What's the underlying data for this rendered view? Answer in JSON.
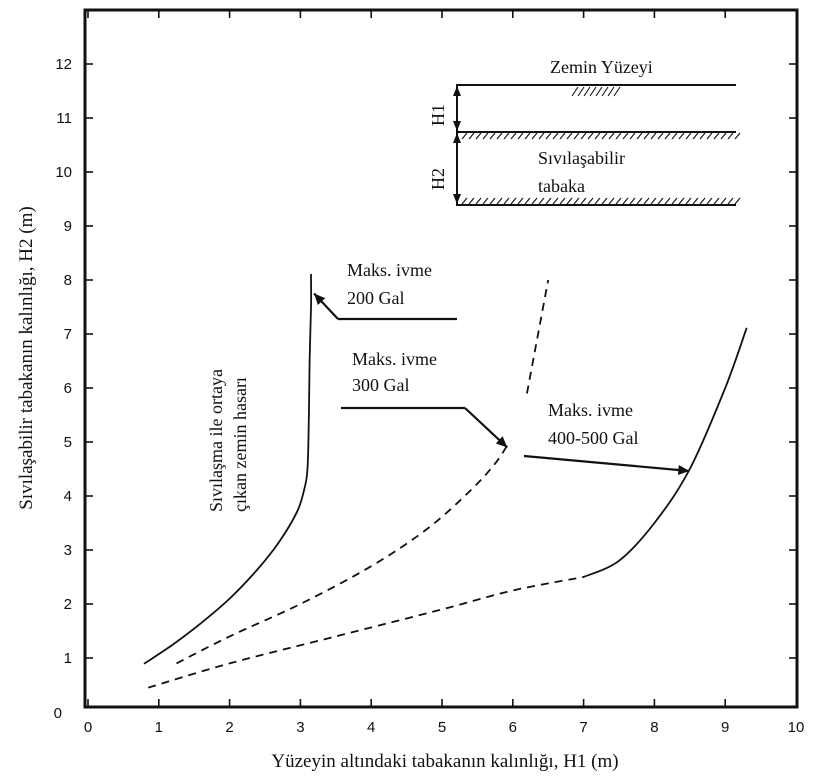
{
  "chart_data": {
    "type": "line",
    "xlabel": "Yüzeyin altındaki tabakanın kalınlığı, H1 (m)",
    "ylabel": "Sıvılaşabilir tabakanın kalınlığı, H2 (m)",
    "xlim": [
      0,
      10
    ],
    "ylim": [
      0,
      13
    ],
    "x_ticks": [
      "0",
      "1",
      "2",
      "3",
      "4",
      "5",
      "6",
      "7",
      "8",
      "9",
      "10"
    ],
    "y_ticks": [
      "1",
      "2",
      "3",
      "4",
      "5",
      "6",
      "7",
      "8",
      "9",
      "10",
      "11",
      "12"
    ],
    "grid": false,
    "series": [
      {
        "name": "Maks. ivme 200 Gal",
        "style": "solid",
        "points": [
          [
            0.8,
            0.9
          ],
          [
            1.2,
            1.25
          ],
          [
            1.6,
            1.65
          ],
          [
            2.0,
            2.1
          ],
          [
            2.4,
            2.65
          ],
          [
            2.7,
            3.15
          ],
          [
            2.95,
            3.7
          ],
          [
            3.05,
            4.1
          ],
          [
            3.1,
            4.5
          ],
          [
            3.12,
            5.5
          ],
          [
            3.13,
            6.5
          ],
          [
            3.15,
            7.5
          ],
          [
            3.15,
            8.1
          ]
        ]
      },
      {
        "name": "Maks. ivme 300 Gal",
        "style": "dashed",
        "points": [
          [
            1.25,
            0.9
          ],
          [
            2.0,
            1.4
          ],
          [
            3.0,
            2.0
          ],
          [
            4.0,
            2.7
          ],
          [
            4.8,
            3.4
          ],
          [
            5.4,
            4.1
          ],
          [
            5.75,
            4.6
          ],
          [
            5.95,
            5.0
          ]
        ]
      },
      {
        "name": "",
        "style": "dashed",
        "points": [
          [
            6.2,
            5.9
          ],
          [
            6.3,
            6.6
          ],
          [
            6.4,
            7.3
          ],
          [
            6.5,
            8.0
          ]
        ]
      },
      {
        "name": "Maks. ivme 400-500 Gal",
        "style": "dashed-then-solid",
        "points": [
          [
            0.85,
            0.45
          ],
          [
            2.0,
            0.9
          ],
          [
            3.5,
            1.4
          ],
          [
            5.0,
            1.9
          ],
          [
            6.0,
            2.25
          ],
          [
            7.0,
            2.5
          ],
          [
            7.5,
            2.8
          ],
          [
            8.0,
            3.5
          ],
          [
            8.5,
            4.5
          ],
          [
            9.0,
            6.0
          ],
          [
            9.3,
            7.1
          ]
        ]
      }
    ],
    "annotations": [
      {
        "id": "a200",
        "lines": [
          "Maks. ivme",
          "200 Gal"
        ],
        "arrow_to": [
          3.15,
          7.75
        ]
      },
      {
        "id": "a300",
        "lines": [
          "Maks. ivme",
          "300 Gal"
        ],
        "arrow_to": [
          5.95,
          4.9
        ]
      },
      {
        "id": "a400",
        "lines": [
          "Maks. ivme",
          "400-500 Gal"
        ],
        "arrow_to": [
          8.55,
          4.5
        ]
      },
      {
        "id": "damage",
        "lines": [
          "Sıvılaşma ile ortaya",
          "çıkan zemin hasarı"
        ],
        "rotated": true
      }
    ],
    "inset": {
      "surface_label": "Zemin Yüzeyi",
      "h1_label": "H1",
      "h2_label": "H2",
      "layer_label": [
        "Sıvılaşabilir",
        "tabaka"
      ]
    }
  }
}
